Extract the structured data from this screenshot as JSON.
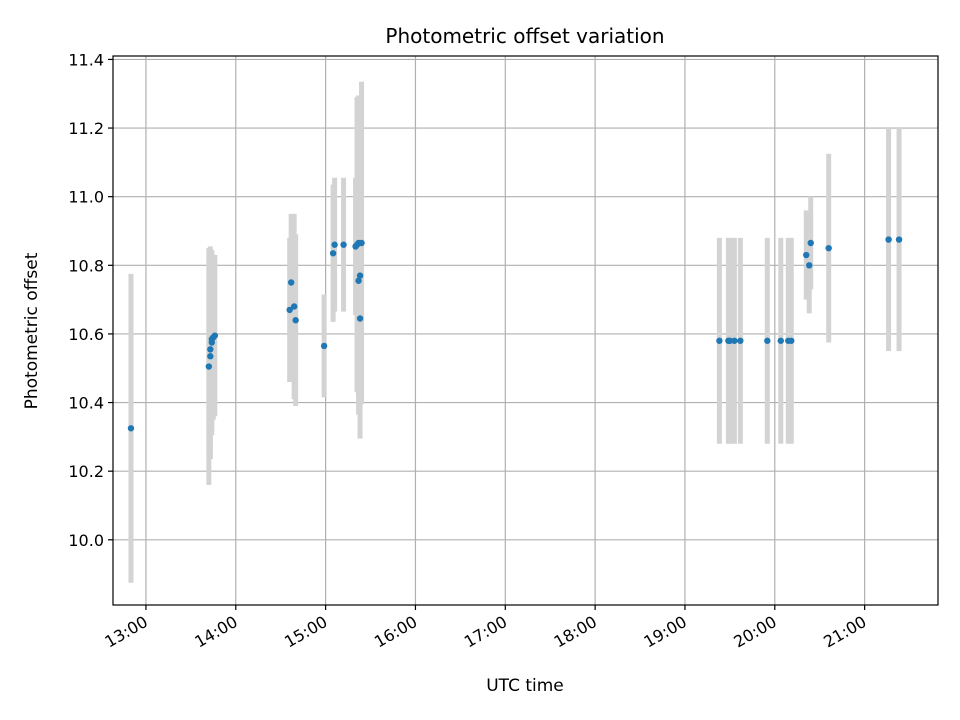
{
  "chart_data": {
    "type": "scatter",
    "title": "Photometric offset variation",
    "xlabel": "UTC time",
    "ylabel": "Photometric offset",
    "xlim": [
      "12:38",
      "21:49"
    ],
    "ylim": [
      9.81,
      11.41
    ],
    "grid": true,
    "x_ticks": [
      "13:00",
      "14:00",
      "15:00",
      "16:00",
      "17:00",
      "18:00",
      "19:00",
      "20:00",
      "21:00"
    ],
    "y_ticks": [
      "10.0",
      "10.2",
      "10.4",
      "10.6",
      "10.8",
      "11.0",
      "11.2",
      "11.4"
    ],
    "marker_color": "#1f77b4",
    "errorbar_color": "#d3d3d3",
    "points": [
      {
        "t": "12:50",
        "y": 10.325,
        "err": 0.45
      },
      {
        "t": "13:42",
        "y": 10.505,
        "err": 0.345
      },
      {
        "t": "13:43",
        "y": 10.535,
        "err": 0.3
      },
      {
        "t": "13:43",
        "y": 10.555,
        "err": 0.3
      },
      {
        "t": "13:44",
        "y": 10.575,
        "err": 0.27
      },
      {
        "t": "13:44",
        "y": 10.585,
        "err": 0.25
      },
      {
        "t": "13:45",
        "y": 10.59,
        "err": 0.24
      },
      {
        "t": "13:46",
        "y": 10.595,
        "err": 0.235
      },
      {
        "t": "14:36",
        "y": 10.67,
        "err": 0.21
      },
      {
        "t": "14:37",
        "y": 10.75,
        "err": 0.2
      },
      {
        "t": "14:39",
        "y": 10.68,
        "err": 0.27
      },
      {
        "t": "14:40",
        "y": 10.64,
        "err": 0.25
      },
      {
        "t": "14:59",
        "y": 10.565,
        "err": 0.15
      },
      {
        "t": "15:05",
        "y": 10.835,
        "err": 0.2
      },
      {
        "t": "15:06",
        "y": 10.86,
        "err": 0.195
      },
      {
        "t": "15:12",
        "y": 10.86,
        "err": 0.195
      },
      {
        "t": "15:20",
        "y": 10.855,
        "err": 0.2
      },
      {
        "t": "15:21",
        "y": 10.86,
        "err": 0.43
      },
      {
        "t": "15:22",
        "y": 10.865,
        "err": 0.43
      },
      {
        "t": "15:22",
        "y": 10.755,
        "err": 0.39
      },
      {
        "t": "15:23",
        "y": 10.77,
        "err": 0.39
      },
      {
        "t": "15:23",
        "y": 10.645,
        "err": 0.35
      },
      {
        "t": "15:24",
        "y": 10.865,
        "err": 0.47
      },
      {
        "t": "19:23",
        "y": 10.58,
        "err": 0.3
      },
      {
        "t": "19:29",
        "y": 10.58,
        "err": 0.3
      },
      {
        "t": "19:30",
        "y": 10.58,
        "err": 0.3
      },
      {
        "t": "19:33",
        "y": 10.58,
        "err": 0.3
      },
      {
        "t": "19:37",
        "y": 10.58,
        "err": 0.3
      },
      {
        "t": "19:55",
        "y": 10.58,
        "err": 0.3
      },
      {
        "t": "20:04",
        "y": 10.58,
        "err": 0.3
      },
      {
        "t": "20:09",
        "y": 10.58,
        "err": 0.3
      },
      {
        "t": "20:11",
        "y": 10.58,
        "err": 0.3
      },
      {
        "t": "20:21",
        "y": 10.83,
        "err": 0.13
      },
      {
        "t": "20:23",
        "y": 10.8,
        "err": 0.14
      },
      {
        "t": "20:24",
        "y": 10.865,
        "err": 0.135
      },
      {
        "t": "20:36",
        "y": 10.85,
        "err": 0.275
      },
      {
        "t": "21:16",
        "y": 10.875,
        "err": 0.325
      },
      {
        "t": "21:23",
        "y": 10.875,
        "err": 0.325
      }
    ]
  }
}
